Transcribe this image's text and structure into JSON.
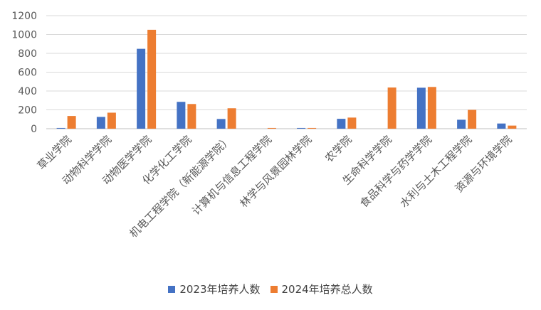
{
  "chart_data": {
    "type": "bar",
    "categories": [
      "草业学院",
      "动物科学学院",
      "动物医学学院",
      "化学化工学院",
      "机电工程学院（新能源学院）",
      "计算机与信息工程学院",
      "林学与风景园林学院",
      "农学院",
      "生命科学学院",
      "食品科学与药学学院",
      "水利与土木工程学院",
      "资源与环境学院"
    ],
    "series": [
      {
        "name": "2023年培养人数",
        "color": "#4472C4",
        "values": [
          8,
          125,
          848,
          285,
          103,
          0,
          8,
          105,
          0,
          435,
          95,
          55
        ]
      },
      {
        "name": "2024年培养总人数",
        "color": "#ED7D31",
        "values": [
          135,
          170,
          1050,
          262,
          217,
          8,
          8,
          118,
          437,
          443,
          200,
          33
        ]
      }
    ],
    "ylim": [
      0,
      1200
    ],
    "yticks": [
      "0",
      "200",
      "400",
      "600",
      "800",
      "1000",
      "1200"
    ],
    "grid": true,
    "legend_position": "bottom"
  }
}
